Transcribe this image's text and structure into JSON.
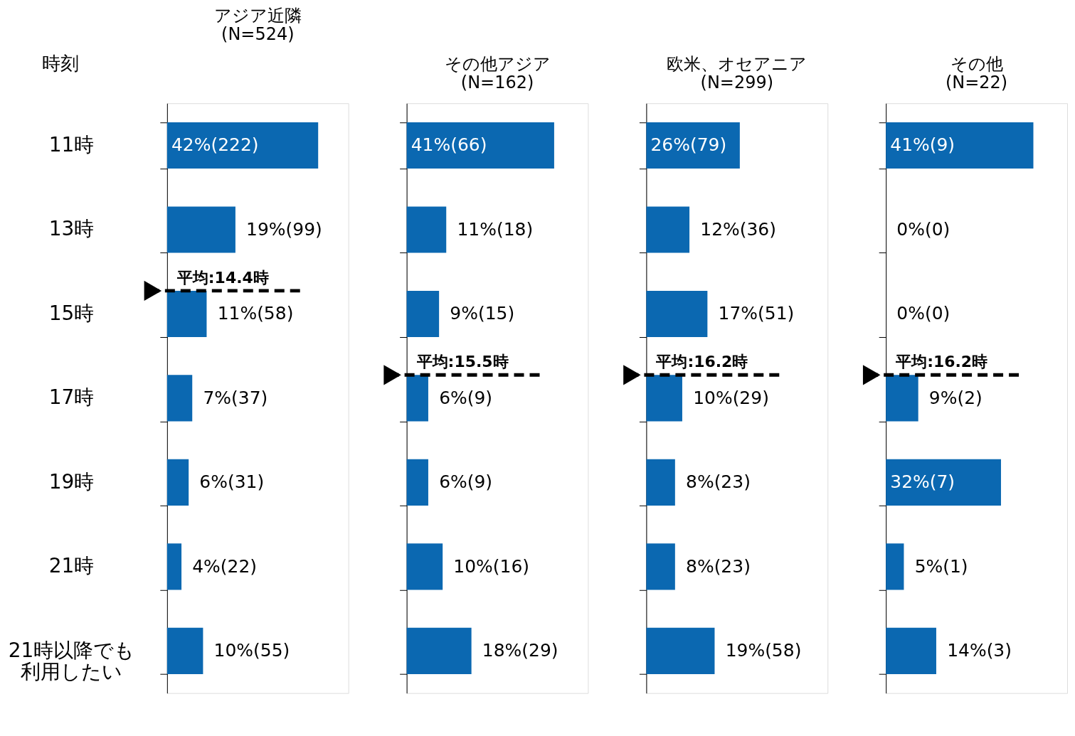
{
  "chart_data": [
    {
      "type": "bar",
      "orientation": "horizontal",
      "title": "アジア近隣\n(N=524)",
      "ylabel": "時刻",
      "tick_labels": "y",
      "color": "#0b68b1",
      "categories": [
        "11時",
        "13時",
        "15時",
        "17時",
        "19時",
        "21時",
        "21時以降でも利用したい"
      ],
      "values": [
        42,
        19,
        11,
        7,
        6,
        4,
        10
      ],
      "value_labels": [
        "42%(222)",
        "19%(99)",
        "11%(58)",
        "7%(37)",
        "6%(31)",
        "4%(22)",
        "10%(55)"
      ],
      "ref_lines": [
        {
          "axis": "y",
          "value": "15時",
          "label": "平均:14.4時",
          "color": "#000000",
          "line_style": "dashed"
        }
      ]
    },
    {
      "type": "bar",
      "orientation": "horizontal",
      "title": "その他アジア\n(N=162)",
      "tick_labels": false,
      "color": "#0b68b1",
      "categories": [
        "11時",
        "13時",
        "15時",
        "17時",
        "19時",
        "21時",
        "21時以降でも利用したい"
      ],
      "values": [
        41,
        11,
        9,
        6,
        6,
        10,
        18
      ],
      "value_labels": [
        "41%(66)",
        "11%(18)",
        "9%(15)",
        "6%(9)",
        "6%(9)",
        "10%(16)",
        "18%(29)"
      ],
      "ref_lines": [
        {
          "axis": "y",
          "value": "17時",
          "label": "平均:15.5時",
          "color": "#000000",
          "line_style": "dashed"
        }
      ]
    },
    {
      "type": "bar",
      "orientation": "horizontal",
      "title": "欧米、オセアニア\n(N=299)",
      "tick_labels": false,
      "color": "#0b68b1",
      "categories": [
        "11時",
        "13時",
        "15時",
        "17時",
        "19時",
        "21時",
        "21時以降でも利用したい"
      ],
      "values": [
        26,
        12,
        17,
        10,
        8,
        8,
        19
      ],
      "value_labels": [
        "26%(79)",
        "12%(36)",
        "17%(51)",
        "10%(29)",
        "8%(23)",
        "8%(23)",
        "19%(58)"
      ],
      "ref_lines": [
        {
          "axis": "y",
          "value": "17時",
          "label": "平均:16.2時",
          "color": "#000000",
          "line_style": "dashed"
        }
      ]
    },
    {
      "type": "bar",
      "orientation": "horizontal",
      "title": "その他\n(N=22)",
      "tick_labels": false,
      "color": "#0b68b1",
      "categories": [
        "11時",
        "13時",
        "15時",
        "17時",
        "19時",
        "21時",
        "21時以降でも利用したい"
      ],
      "values": [
        41,
        0,
        0,
        9,
        32,
        5,
        14
      ],
      "value_labels": [
        "41%(9)",
        "0%(0)",
        "0%(0)",
        "9%(2)",
        "32%(7)",
        "5%(1)",
        "14%(3)"
      ],
      "ref_lines": [
        {
          "axis": "y",
          "value": "17時",
          "label": "平均:16.2時",
          "color": "#000000",
          "line_style": "dashed"
        }
      ]
    }
  ]
}
